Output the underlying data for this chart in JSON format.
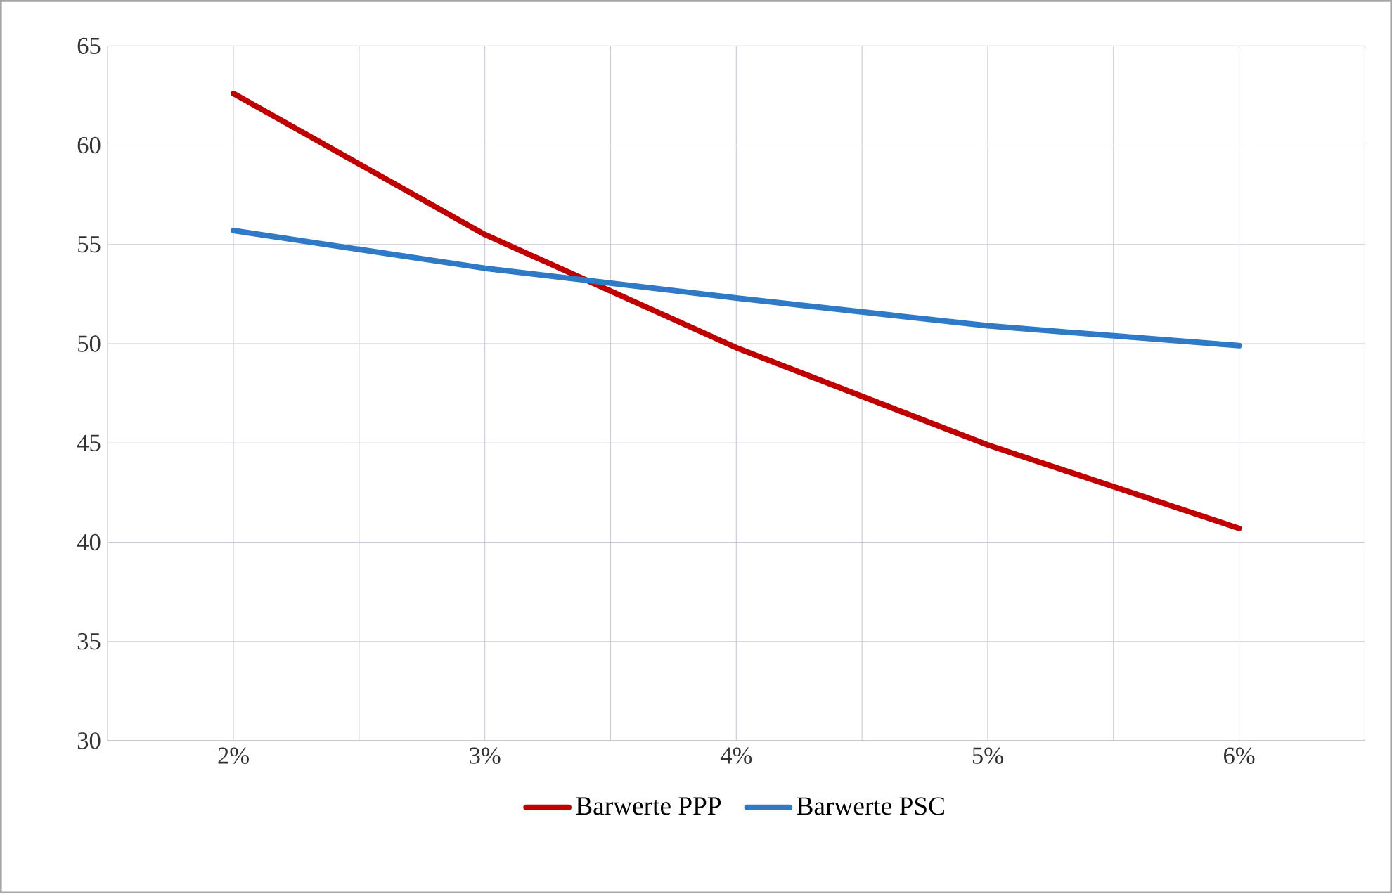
{
  "chart_data": {
    "type": "line",
    "categories": [
      "2%",
      "3%",
      "4%",
      "5%",
      "6%"
    ],
    "series": [
      {
        "name": "Barwerte PPP",
        "color": "#c00000",
        "values": [
          62.6,
          55.5,
          49.8,
          44.9,
          40.7
        ]
      },
      {
        "name": "Barwerte PSC",
        "color": "#2e7ac6",
        "values": [
          55.7,
          53.8,
          52.3,
          50.9,
          49.9
        ]
      }
    ],
    "ylim": [
      30,
      65
    ],
    "yticks": [
      30,
      35,
      40,
      45,
      50,
      55,
      60,
      65
    ],
    "grid": true,
    "legend": "bottom",
    "marker": "none",
    "line_style": "solid"
  }
}
